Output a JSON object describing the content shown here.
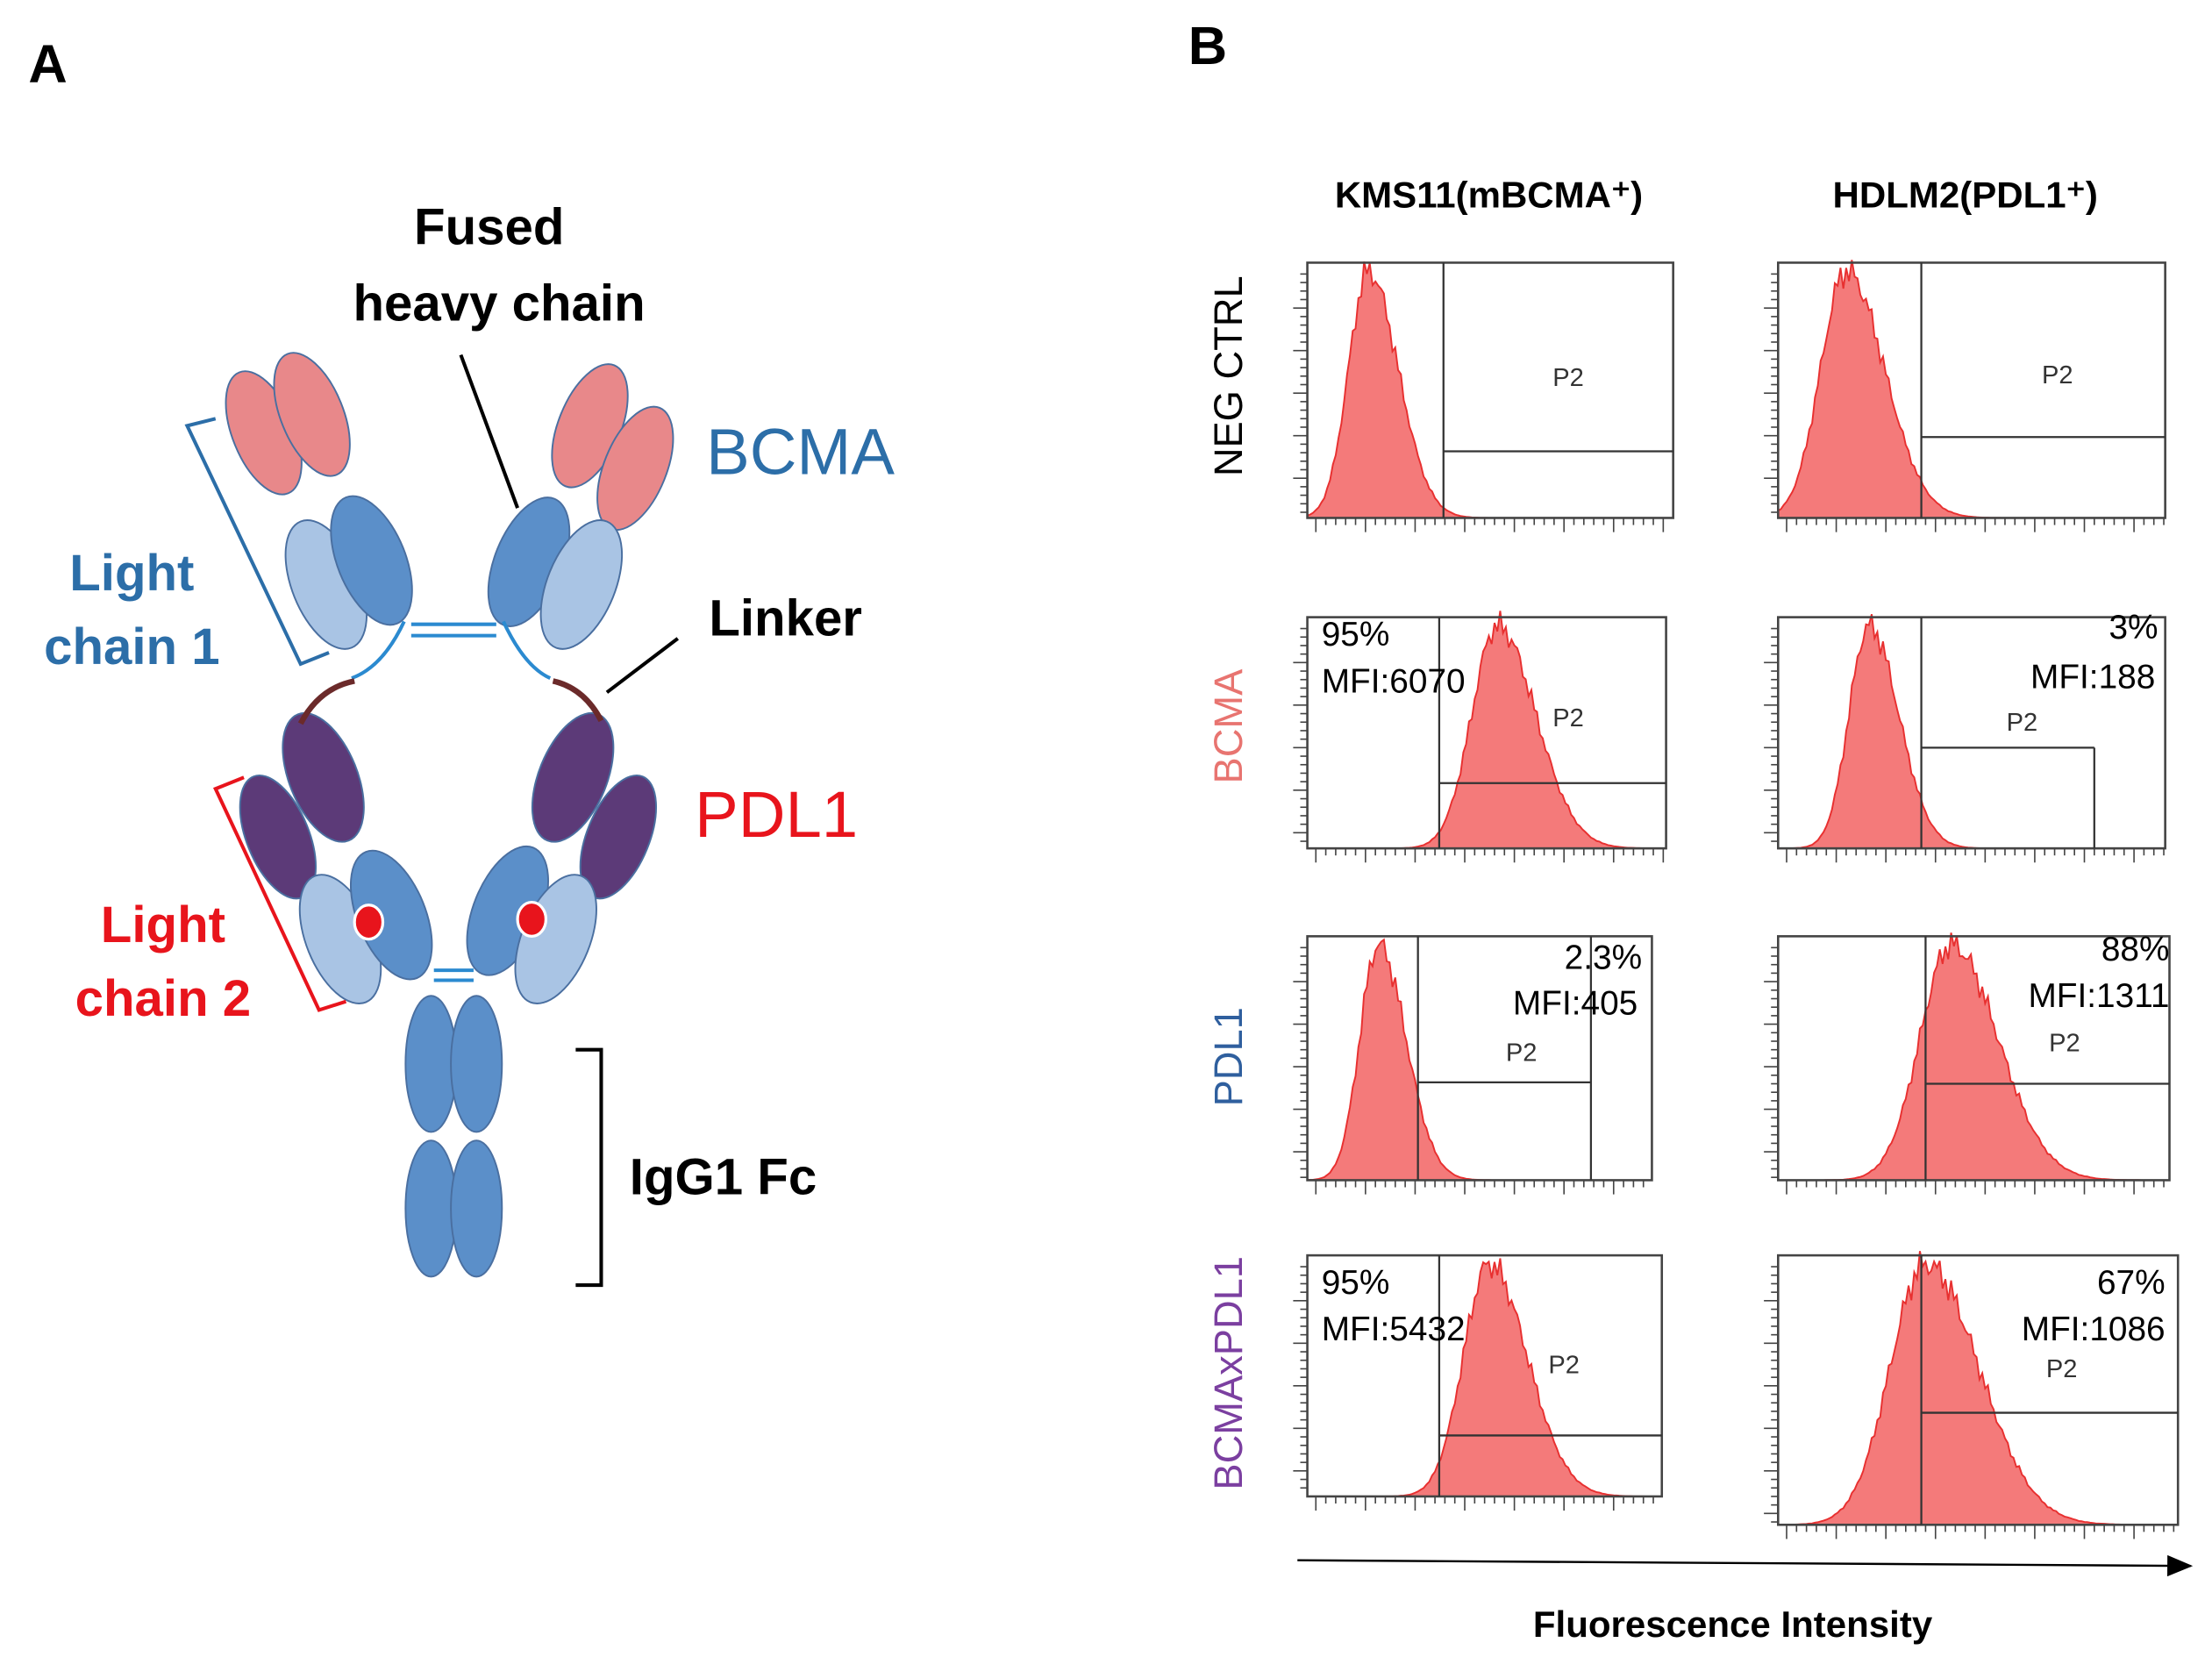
{
  "panel_a": {
    "label": "A",
    "fused_heavy_chain": [
      "Fused",
      "heavy chain"
    ],
    "bcma": "BCMA",
    "light_chain_1": [
      "Light",
      "chain 1"
    ],
    "linker": "Linker",
    "pdl1": "PDL1",
    "light_chain_2": [
      "Light",
      "chain 2"
    ],
    "igg1_fc": "IgG1 Fc"
  },
  "panel_b": {
    "label": "B",
    "columns": [
      "KMS11(mBCMA⁺)",
      "HDLM2(PDL1⁺)"
    ],
    "rows": [
      {
        "label": "NEG CTRL",
        "cells": [
          {
            "gate": "P2"
          },
          {
            "gate": "P2"
          }
        ]
      },
      {
        "label": "BCMA",
        "cells": [
          {
            "percent": "95%",
            "mfi": "MFI:6070",
            "gate": "P2"
          },
          {
            "percent": "3%",
            "mfi": "MFI:188",
            "gate": "P2"
          }
        ]
      },
      {
        "label": "PDL1",
        "cells": [
          {
            "percent": "2.3%",
            "mfi": "MFI:405",
            "gate": "P2"
          },
          {
            "percent": "88%",
            "mfi": "MFI:1311",
            "gate": "P2"
          }
        ]
      },
      {
        "label": "BCMAxPDL1",
        "cells": [
          {
            "percent": "95%",
            "mfi": "MFI:5432",
            "gate": "P2"
          },
          {
            "percent": "67%",
            "mfi": "MFI:1086",
            "gate": "P2"
          }
        ]
      }
    ],
    "x_axis_label": "Fluorescence Intensity"
  }
}
